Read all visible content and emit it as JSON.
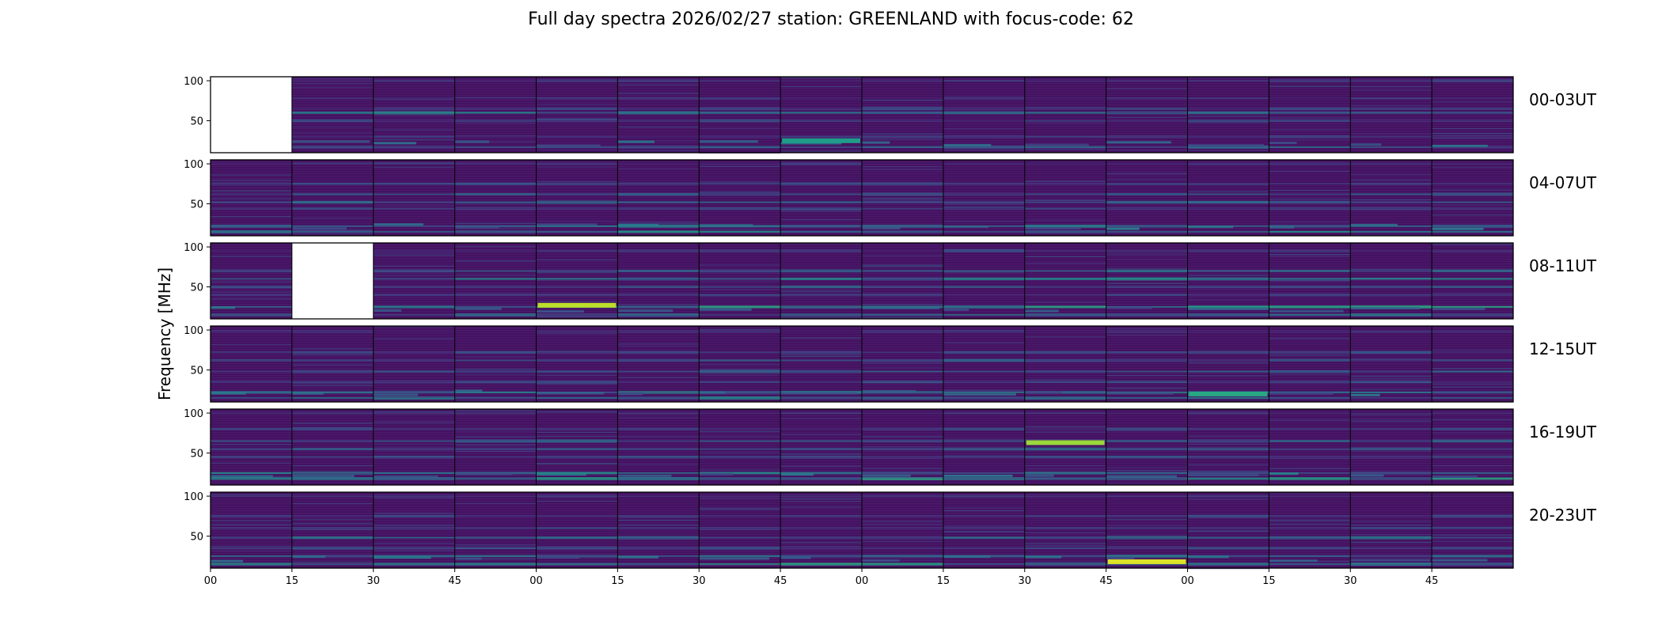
{
  "chart_data": {
    "type": "heatmap",
    "title": "Full day spectra 2026/02/27 station: GREENLAND with focus-code: 62",
    "ylabel": "Frequency [MHz]",
    "xlabel": "",
    "ylim": [
      10,
      105
    ],
    "yticks": [
      "100",
      "50"
    ],
    "xticks": [
      "00",
      "15",
      "30",
      "45",
      "00",
      "15",
      "30",
      "45",
      "00",
      "15",
      "30",
      "45",
      "00",
      "15",
      "30",
      "45"
    ],
    "colormap": "viridis",
    "panels_per_row": 16,
    "rows": [
      {
        "label": "00-03UT",
        "missing": [
          0
        ],
        "bands": [
          [
            100,
            0.15
          ],
          [
            78,
            0.12
          ],
          [
            65,
            0.2
          ],
          [
            60,
            0.35
          ],
          [
            50,
            0.18
          ],
          [
            30,
            0.15
          ],
          [
            17,
            0.3
          ]
        ]
      },
      {
        "label": "04-07UT",
        "missing": [],
        "bands": [
          [
            100,
            0.12
          ],
          [
            75,
            0.2
          ],
          [
            62,
            0.25
          ],
          [
            52,
            0.3
          ],
          [
            44,
            0.2
          ],
          [
            22,
            0.35
          ],
          [
            15,
            0.4
          ]
        ]
      },
      {
        "label": "08-11UT",
        "missing": [
          1
        ],
        "bands": [
          [
            95,
            0.15
          ],
          [
            70,
            0.3
          ],
          [
            60,
            0.35
          ],
          [
            50,
            0.28
          ],
          [
            40,
            0.2
          ],
          [
            25,
            0.45
          ],
          [
            15,
            0.3
          ]
        ]
      },
      {
        "label": "12-15UT",
        "missing": [],
        "bands": [
          [
            98,
            0.12
          ],
          [
            72,
            0.2
          ],
          [
            62,
            0.25
          ],
          [
            48,
            0.3
          ],
          [
            35,
            0.2
          ],
          [
            22,
            0.4
          ],
          [
            15,
            0.35
          ]
        ]
      },
      {
        "label": "16-19UT",
        "missing": [],
        "bands": [
          [
            100,
            0.12
          ],
          [
            80,
            0.2
          ],
          [
            65,
            0.3
          ],
          [
            55,
            0.25
          ],
          [
            45,
            0.2
          ],
          [
            25,
            0.4
          ],
          [
            18,
            0.45
          ]
        ]
      },
      {
        "label": "20-23UT",
        "missing": [],
        "bands": [
          [
            100,
            0.12
          ],
          [
            75,
            0.2
          ],
          [
            60,
            0.22
          ],
          [
            48,
            0.3
          ],
          [
            35,
            0.2
          ],
          [
            25,
            0.3
          ],
          [
            15,
            0.45
          ]
        ]
      }
    ],
    "hotspots": [
      {
        "row": 2,
        "panel": 4,
        "freq": 27,
        "intensity": 0.9
      },
      {
        "row": 4,
        "panel": 10,
        "freq": 63,
        "intensity": 0.85
      },
      {
        "row": 5,
        "panel": 11,
        "freq": 18,
        "intensity": 0.95
      },
      {
        "row": 3,
        "panel": 12,
        "freq": 20,
        "intensity": 0.6
      },
      {
        "row": 0,
        "panel": 7,
        "freq": 25,
        "intensity": 0.55
      }
    ]
  }
}
